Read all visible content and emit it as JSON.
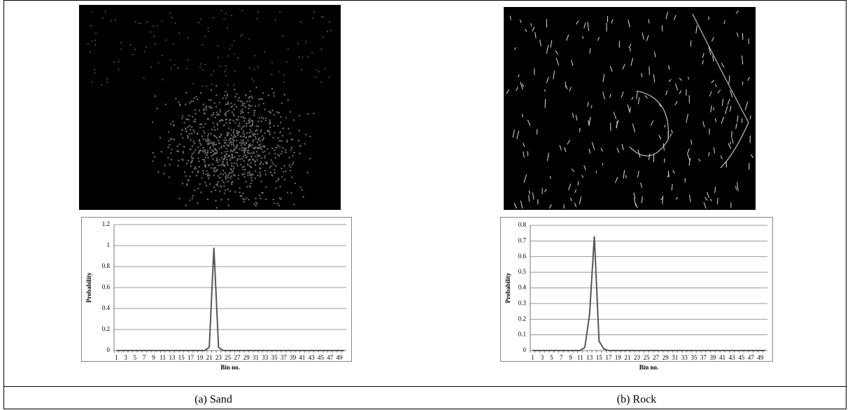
{
  "chart_data": [
    {
      "type": "line",
      "caption": "(a) Sand",
      "xlabel": "Bin no.",
      "ylabel": "Probability",
      "color": "#555555",
      "grid": true,
      "categories": [
        1,
        null,
        3,
        null,
        5,
        null,
        7,
        null,
        9,
        null,
        11,
        null,
        13,
        null,
        15,
        null,
        17,
        null,
        19,
        null,
        21,
        null,
        23,
        null,
        25,
        null,
        27,
        null,
        29,
        null,
        31,
        null,
        33,
        null,
        35,
        null,
        37,
        null,
        39,
        null,
        41,
        null,
        43,
        null,
        45,
        null,
        47,
        null,
        49,
        null
      ],
      "values": [
        0,
        0,
        0,
        0,
        0,
        0,
        0,
        0,
        0,
        0,
        0,
        0,
        0,
        0,
        0,
        0,
        0,
        0,
        0,
        0,
        0.03,
        0.98,
        0.03,
        0,
        0,
        0,
        0,
        0,
        0,
        0,
        0,
        0,
        0,
        0,
        0,
        0,
        0,
        0,
        0,
        0,
        0,
        0,
        0,
        0,
        0,
        0,
        0,
        0,
        0,
        0
      ],
      "ylim": [
        0,
        1.2
      ],
      "yticks": [
        0,
        0.2,
        0.4,
        0.6,
        0.8,
        1,
        1.2
      ]
    },
    {
      "type": "line",
      "caption": "(b) Rock",
      "xlabel": "Bin no.",
      "ylabel": "Probability",
      "color": "#555555",
      "grid": true,
      "categories": [
        1,
        null,
        3,
        null,
        5,
        null,
        7,
        null,
        9,
        null,
        11,
        null,
        13,
        null,
        15,
        null,
        17,
        null,
        19,
        null,
        21,
        null,
        23,
        null,
        25,
        null,
        27,
        null,
        29,
        null,
        31,
        null,
        33,
        null,
        35,
        null,
        37,
        null,
        39,
        null,
        41,
        null,
        43,
        null,
        45,
        null,
        47,
        null,
        49,
        null
      ],
      "values": [
        0,
        0,
        0,
        0,
        0,
        0,
        0,
        0,
        0,
        0,
        0,
        0.02,
        0.23,
        0.73,
        0.06,
        0.01,
        0,
        0,
        0,
        0,
        0,
        0,
        0,
        0,
        0,
        0,
        0,
        0,
        0,
        0,
        0,
        0,
        0,
        0,
        0,
        0,
        0,
        0,
        0,
        0,
        0,
        0,
        0,
        0,
        0,
        0,
        0,
        0,
        0,
        0
      ],
      "ylim": [
        0,
        0.8
      ],
      "yticks": [
        0,
        0.1,
        0.2,
        0.3,
        0.4,
        0.5,
        0.6,
        0.7,
        0.8
      ]
    }
  ]
}
